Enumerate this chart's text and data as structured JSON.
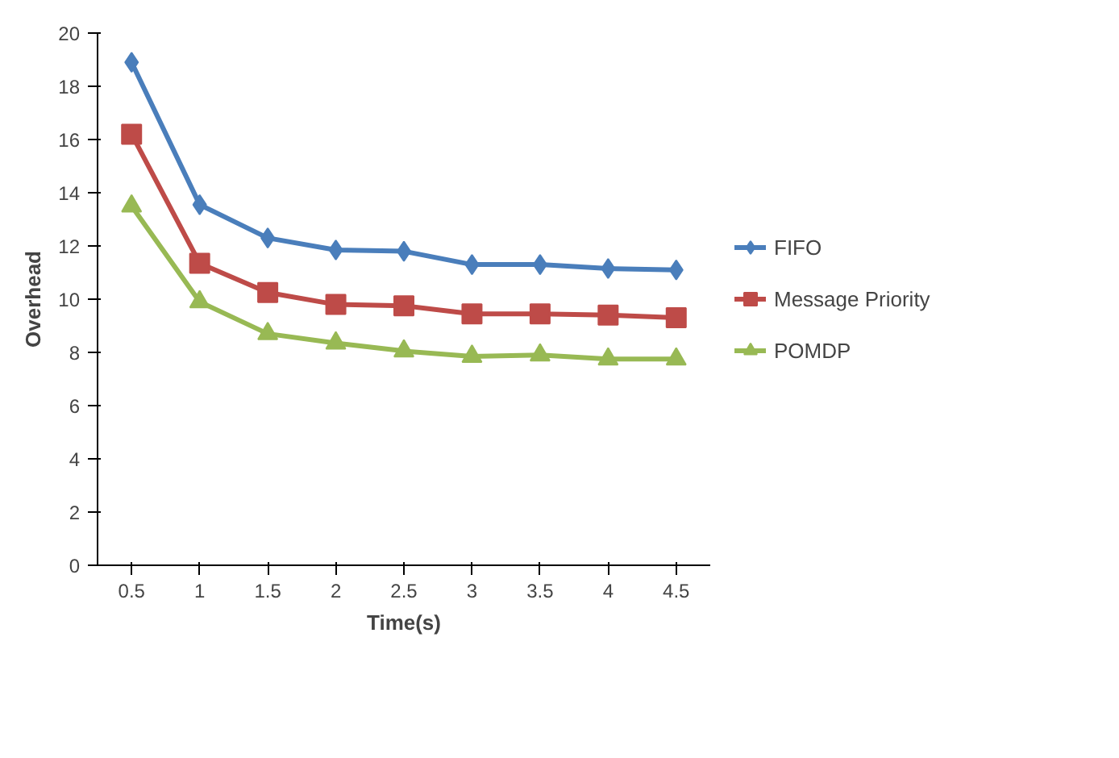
{
  "chart_data": {
    "type": "line",
    "xlabel": "Time(s)",
    "ylabel": "Overhead",
    "categories": [
      "0.5",
      "1",
      "1.5",
      "2",
      "2.5",
      "3",
      "3.5",
      "4",
      "4.5"
    ],
    "ylim": [
      0,
      20
    ],
    "yticks": [
      0,
      2,
      4,
      6,
      8,
      10,
      12,
      14,
      16,
      18,
      20
    ],
    "grid": false,
    "legend": "right",
    "series": [
      {
        "name": "FIFO",
        "color": "#4a7ebb",
        "marker": "diamond",
        "values": [
          18.9,
          13.55,
          12.3,
          11.85,
          11.8,
          11.3,
          11.3,
          11.15,
          11.1
        ]
      },
      {
        "name": "Message Priority",
        "color": "#be4b48",
        "marker": "square",
        "values": [
          16.2,
          11.35,
          10.25,
          9.8,
          9.75,
          9.45,
          9.45,
          9.4,
          9.3
        ]
      },
      {
        "name": "POMDP",
        "color": "#98b954",
        "marker": "triangle",
        "values": [
          13.5,
          9.9,
          8.7,
          8.35,
          8.05,
          7.85,
          7.9,
          7.75,
          7.75
        ]
      }
    ]
  }
}
